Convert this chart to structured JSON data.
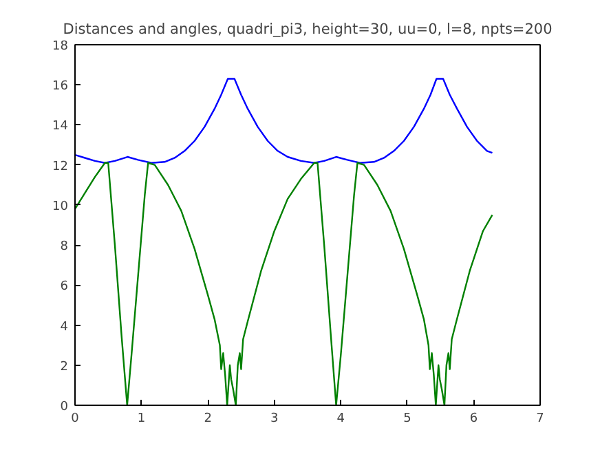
{
  "chart_data": {
    "type": "line",
    "title": "Distances and angles, quadri_pi3, height=30, uu=0, l=8, npts=200",
    "xlim": [
      0,
      7
    ],
    "ylim": [
      0,
      18
    ],
    "xticks": [
      0,
      1,
      2,
      3,
      4,
      5,
      6,
      7
    ],
    "yticks": [
      0,
      2,
      4,
      6,
      8,
      10,
      12,
      14,
      16,
      18
    ],
    "grid": false,
    "marker": "none",
    "line_style": "solid",
    "series": [
      {
        "color": "#0000ff",
        "x": [
          0,
          0.15,
          0.3,
          0.45,
          0.6,
          0.79,
          0.95,
          1.15,
          1.35,
          1.5,
          1.65,
          1.8,
          1.95,
          2.1,
          2.2,
          2.3,
          2.4,
          2.5,
          2.6,
          2.75,
          2.9,
          3.05,
          3.2,
          3.4,
          3.6,
          3.75,
          3.93,
          4.1,
          4.29,
          4.5,
          4.65,
          4.8,
          4.95,
          5.1,
          5.25,
          5.35,
          5.44,
          5.54,
          5.64,
          5.75,
          5.9,
          6.05,
          6.2,
          6.28
        ],
        "values": [
          12.5,
          12.35,
          12.2,
          12.1,
          12.2,
          12.4,
          12.25,
          12.1,
          12.15,
          12.35,
          12.7,
          13.2,
          13.9,
          14.8,
          15.5,
          16.3,
          16.3,
          15.5,
          14.8,
          13.9,
          13.2,
          12.7,
          12.4,
          12.2,
          12.1,
          12.2,
          12.4,
          12.25,
          12.1,
          12.15,
          12.35,
          12.7,
          13.2,
          13.9,
          14.8,
          15.5,
          16.3,
          16.3,
          15.5,
          14.8,
          13.9,
          13.2,
          12.7,
          12.6
        ]
      },
      {
        "color": "#008000",
        "x": [
          0,
          0.15,
          0.3,
          0.45,
          0.5,
          0.6,
          0.7,
          0.785,
          0.85,
          0.95,
          1.05,
          1.1,
          1.2,
          1.4,
          1.6,
          1.8,
          2.0,
          2.1,
          2.18,
          2.2,
          2.23,
          2.26,
          2.29,
          2.33,
          2.35,
          2.38,
          2.42,
          2.45,
          2.48,
          2.5,
          2.53,
          2.6,
          2.8,
          3.0,
          3.2,
          3.4,
          3.6,
          3.65,
          3.75,
          3.85,
          3.93,
          4.0,
          4.1,
          4.2,
          4.25,
          4.35,
          4.55,
          4.75,
          4.95,
          5.15,
          5.25,
          5.32,
          5.34,
          5.37,
          5.4,
          5.43,
          5.47,
          5.49,
          5.52,
          5.56,
          5.59,
          5.62,
          5.64,
          5.67,
          5.74,
          5.94,
          6.14,
          6.28
        ],
        "values": [
          9.8,
          10.6,
          11.4,
          12.1,
          12.1,
          8,
          3.5,
          0,
          2.5,
          6.5,
          10.5,
          12.1,
          12.0,
          11,
          9.7,
          7.8,
          5.5,
          4.3,
          3,
          1.8,
          2.6,
          1.5,
          0,
          2.0,
          1.3,
          0.8,
          0,
          2.0,
          2.6,
          1.8,
          3.3,
          4.2,
          6.7,
          8.7,
          10.3,
          11.3,
          12.1,
          12.1,
          8,
          3.5,
          0,
          2.5,
          6.5,
          10.5,
          12.1,
          12.0,
          11,
          9.7,
          7.8,
          5.5,
          4.3,
          3,
          1.8,
          2.6,
          1.5,
          0,
          2.0,
          1.3,
          0.8,
          0,
          2.0,
          2.6,
          1.8,
          3.3,
          4.2,
          6.7,
          8.7,
          9.5
        ]
      }
    ]
  }
}
